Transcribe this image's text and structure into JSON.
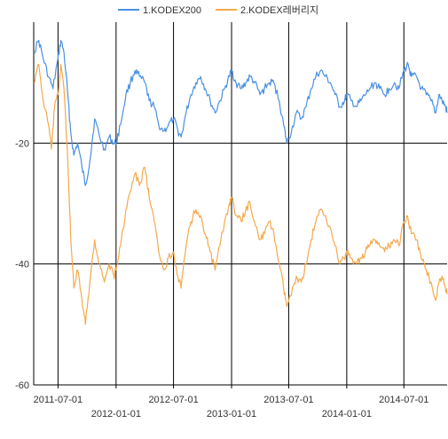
{
  "chart_data": {
    "type": "line",
    "title": "",
    "xlabel": "",
    "ylabel": "",
    "ylim": [
      -60,
      0
    ],
    "y_ticks": [
      -20,
      -40,
      -60
    ],
    "y_tick_labels": [
      "-20",
      "-40",
      "-60"
    ],
    "x_range": [
      "2011-04-15",
      "2014-11-15"
    ],
    "x_ticks": [
      "2011-07-01",
      "2012-01-01",
      "2012-07-01",
      "2013-01-01",
      "2013-07-01",
      "2014-01-01",
      "2014-07-01"
    ],
    "x_tick_labels": [
      "2011-07-01",
      "2012-01-01",
      "2012-07-01",
      "2013-01-01",
      "2013-07-01",
      "2014-01-01",
      "2014-07-01"
    ],
    "grid": true,
    "legend_position": "top-center",
    "series": [
      {
        "name": "1.KODEX200",
        "color": "#4a90e2",
        "points": [
          [
            "2011-04-15",
            -5
          ],
          [
            "2011-05-01",
            -3
          ],
          [
            "2011-05-15",
            -6
          ],
          [
            "2011-06-01",
            -9
          ],
          [
            "2011-06-15",
            -11
          ],
          [
            "2011-07-01",
            -6
          ],
          [
            "2011-07-10",
            -3
          ],
          [
            "2011-07-20",
            -5
          ],
          [
            "2011-08-01",
            -12
          ],
          [
            "2011-08-10",
            -18
          ],
          [
            "2011-08-20",
            -22
          ],
          [
            "2011-09-01",
            -20
          ],
          [
            "2011-09-15",
            -24
          ],
          [
            "2011-09-26",
            -27
          ],
          [
            "2011-10-10",
            -23
          ],
          [
            "2011-10-25",
            -16
          ],
          [
            "2011-11-10",
            -19
          ],
          [
            "2011-11-25",
            -21
          ],
          [
            "2011-12-10",
            -19
          ],
          [
            "2011-12-25",
            -20
          ],
          [
            "2012-01-01",
            -20
          ],
          [
            "2012-01-15",
            -17
          ],
          [
            "2012-02-01",
            -12
          ],
          [
            "2012-02-15",
            -10
          ],
          [
            "2012-03-01",
            -8
          ],
          [
            "2012-03-15",
            -9
          ],
          [
            "2012-04-01",
            -10
          ],
          [
            "2012-04-15",
            -13
          ],
          [
            "2012-05-01",
            -14
          ],
          [
            "2012-05-15",
            -17
          ],
          [
            "2012-06-01",
            -18
          ],
          [
            "2012-06-15",
            -17
          ],
          [
            "2012-07-01",
            -16
          ],
          [
            "2012-07-15",
            -18
          ],
          [
            "2012-07-25",
            -19
          ],
          [
            "2012-08-10",
            -15
          ],
          [
            "2012-08-25",
            -12
          ],
          [
            "2012-09-10",
            -10
          ],
          [
            "2012-09-25",
            -9
          ],
          [
            "2012-10-10",
            -11
          ],
          [
            "2012-10-25",
            -13
          ],
          [
            "2012-11-10",
            -15
          ],
          [
            "2012-11-25",
            -13
          ],
          [
            "2012-12-10",
            -11
          ],
          [
            "2012-12-25",
            -9
          ],
          [
            "2013-01-01",
            -8
          ],
          [
            "2013-01-15",
            -10
          ],
          [
            "2013-02-01",
            -11
          ],
          [
            "2013-02-15",
            -10
          ],
          [
            "2013-03-01",
            -9
          ],
          [
            "2013-03-15",
            -10
          ],
          [
            "2013-04-01",
            -12
          ],
          [
            "2013-04-15",
            -11
          ],
          [
            "2013-05-01",
            -10
          ],
          [
            "2013-05-15",
            -10
          ],
          [
            "2013-06-01",
            -13
          ],
          [
            "2013-06-15",
            -17
          ],
          [
            "2013-06-25",
            -20
          ],
          [
            "2013-07-10",
            -18
          ],
          [
            "2013-07-25",
            -15
          ],
          [
            "2013-08-10",
            -16
          ],
          [
            "2013-08-25",
            -14
          ],
          [
            "2013-09-10",
            -11
          ],
          [
            "2013-09-25",
            -9
          ],
          [
            "2013-10-10",
            -8
          ],
          [
            "2013-10-25",
            -9
          ],
          [
            "2013-11-10",
            -10
          ],
          [
            "2013-11-25",
            -12
          ],
          [
            "2013-12-10",
            -14
          ],
          [
            "2013-12-25",
            -13
          ],
          [
            "2014-01-01",
            -12
          ],
          [
            "2014-01-15",
            -13
          ],
          [
            "2014-02-01",
            -14
          ],
          [
            "2014-02-15",
            -13
          ],
          [
            "2014-03-01",
            -12
          ],
          [
            "2014-03-15",
            -11
          ],
          [
            "2014-04-01",
            -10
          ],
          [
            "2014-04-15",
            -11
          ],
          [
            "2014-05-01",
            -12
          ],
          [
            "2014-05-15",
            -11
          ],
          [
            "2014-06-01",
            -10
          ],
          [
            "2014-06-15",
            -11
          ],
          [
            "2014-07-01",
            -8
          ],
          [
            "2014-07-15",
            -7
          ],
          [
            "2014-07-25",
            -9
          ],
          [
            "2014-08-10",
            -9
          ],
          [
            "2014-08-25",
            -11
          ],
          [
            "2014-09-10",
            -12
          ],
          [
            "2014-09-25",
            -13
          ],
          [
            "2014-10-10",
            -15
          ],
          [
            "2014-10-20",
            -12
          ],
          [
            "2014-10-30",
            -13
          ],
          [
            "2014-11-10",
            -14
          ],
          [
            "2014-11-15",
            -15
          ]
        ]
      },
      {
        "name": "2.KODEX레버리지",
        "color": "#f5a94a",
        "points": [
          [
            "2011-04-15",
            -10
          ],
          [
            "2011-05-01",
            -7
          ],
          [
            "2011-05-15",
            -13
          ],
          [
            "2011-06-01",
            -17
          ],
          [
            "2011-06-10",
            -21
          ],
          [
            "2011-06-20",
            -14
          ],
          [
            "2011-07-01",
            -12
          ],
          [
            "2011-07-10",
            -7
          ],
          [
            "2011-07-20",
            -11
          ],
          [
            "2011-08-01",
            -23
          ],
          [
            "2011-08-10",
            -35
          ],
          [
            "2011-08-20",
            -44
          ],
          [
            "2011-09-01",
            -41
          ],
          [
            "2011-09-15",
            -46
          ],
          [
            "2011-09-26",
            -50
          ],
          [
            "2011-10-10",
            -43
          ],
          [
            "2011-10-25",
            -36
          ],
          [
            "2011-11-10",
            -40
          ],
          [
            "2011-11-25",
            -43
          ],
          [
            "2011-12-10",
            -40
          ],
          [
            "2011-12-25",
            -42
          ],
          [
            "2012-01-01",
            -41
          ],
          [
            "2012-01-15",
            -37
          ],
          [
            "2012-02-01",
            -31
          ],
          [
            "2012-02-15",
            -28
          ],
          [
            "2012-03-01",
            -25
          ],
          [
            "2012-03-15",
            -27
          ],
          [
            "2012-04-01",
            -24
          ],
          [
            "2012-04-15",
            -29
          ],
          [
            "2012-05-01",
            -33
          ],
          [
            "2012-05-15",
            -38
          ],
          [
            "2012-06-01",
            -41
          ],
          [
            "2012-06-15",
            -39
          ],
          [
            "2012-07-01",
            -38
          ],
          [
            "2012-07-15",
            -42
          ],
          [
            "2012-07-25",
            -44
          ],
          [
            "2012-08-10",
            -37
          ],
          [
            "2012-08-25",
            -33
          ],
          [
            "2012-09-10",
            -31
          ],
          [
            "2012-09-25",
            -32
          ],
          [
            "2012-10-10",
            -35
          ],
          [
            "2012-10-25",
            -38
          ],
          [
            "2012-11-10",
            -41
          ],
          [
            "2012-11-25",
            -37
          ],
          [
            "2012-12-10",
            -33
          ],
          [
            "2012-12-25",
            -30
          ],
          [
            "2013-01-01",
            -29
          ],
          [
            "2013-01-15",
            -32
          ],
          [
            "2013-02-01",
            -33
          ],
          [
            "2013-02-15",
            -31
          ],
          [
            "2013-03-01",
            -30
          ],
          [
            "2013-03-15",
            -33
          ],
          [
            "2013-04-01",
            -36
          ],
          [
            "2013-04-15",
            -35
          ],
          [
            "2013-05-01",
            -33
          ],
          [
            "2013-05-15",
            -35
          ],
          [
            "2013-06-01",
            -40
          ],
          [
            "2013-06-15",
            -44
          ],
          [
            "2013-06-25",
            -47
          ],
          [
            "2013-07-10",
            -45
          ],
          [
            "2013-07-25",
            -42
          ],
          [
            "2013-08-10",
            -43
          ],
          [
            "2013-08-25",
            -40
          ],
          [
            "2013-09-10",
            -36
          ],
          [
            "2013-09-25",
            -33
          ],
          [
            "2013-10-10",
            -31
          ],
          [
            "2013-10-25",
            -32
          ],
          [
            "2013-11-10",
            -34
          ],
          [
            "2013-11-25",
            -37
          ],
          [
            "2013-12-10",
            -40
          ],
          [
            "2013-12-25",
            -39
          ],
          [
            "2014-01-01",
            -38
          ],
          [
            "2014-01-15",
            -39
          ],
          [
            "2014-02-01",
            -40
          ],
          [
            "2014-02-15",
            -39
          ],
          [
            "2014-03-01",
            -38
          ],
          [
            "2014-03-15",
            -37
          ],
          [
            "2014-04-01",
            -36
          ],
          [
            "2014-04-15",
            -37
          ],
          [
            "2014-05-01",
            -38
          ],
          [
            "2014-05-15",
            -37
          ],
          [
            "2014-06-01",
            -36
          ],
          [
            "2014-06-15",
            -37
          ],
          [
            "2014-07-01",
            -33
          ],
          [
            "2014-07-10",
            -32
          ],
          [
            "2014-07-25",
            -35
          ],
          [
            "2014-08-10",
            -36
          ],
          [
            "2014-08-25",
            -39
          ],
          [
            "2014-09-10",
            -41
          ],
          [
            "2014-09-25",
            -43
          ],
          [
            "2014-10-10",
            -46
          ],
          [
            "2014-10-20",
            -43
          ],
          [
            "2014-10-30",
            -42
          ],
          [
            "2014-11-10",
            -44
          ],
          [
            "2014-11-15",
            -45
          ]
        ]
      }
    ]
  }
}
